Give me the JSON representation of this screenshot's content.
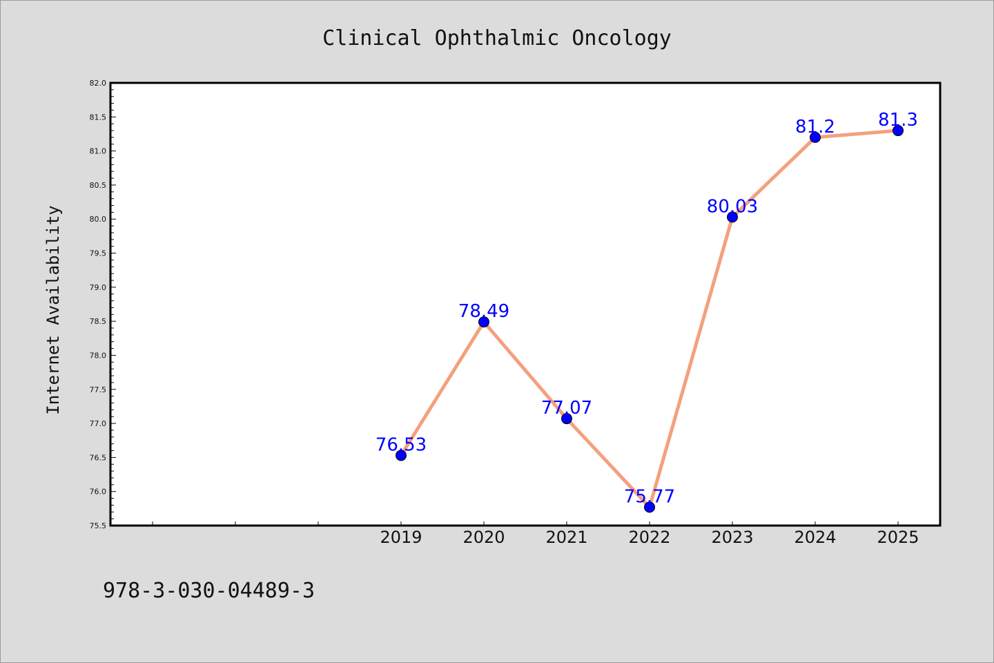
{
  "chart_data": {
    "type": "line",
    "title": "Clinical Ophthalmic Oncology",
    "xlabel": "",
    "ylabel": "Internet Availability",
    "x": [
      "2019",
      "2020",
      "2021",
      "2022",
      "2023",
      "2024",
      "2025"
    ],
    "series": [
      {
        "values": [
          76.53,
          78.49,
          77.07,
          75.77,
          80.03,
          81.2,
          81.3
        ],
        "labels": [
          "76.53",
          "78.49",
          "77.07",
          "75.77",
          "80.03",
          "81.2",
          "81.3"
        ]
      }
    ],
    "ylim": [
      75.5,
      82.0
    ],
    "yticks": [
      "75.5",
      "76.0",
      "76.5",
      "77.0",
      "77.5",
      "78.0",
      "78.5",
      "79.0",
      "79.5",
      "80.0",
      "80.5",
      "81.0",
      "81.5",
      "82.0"
    ],
    "grid": false,
    "colors": {
      "line": "#f4a07e",
      "marker": "#0000ff",
      "data_label": "#0000ff",
      "background": "#dcdcdc",
      "plot_background": "#ffffff"
    }
  },
  "footer": {
    "id_text": "978-3-030-04489-3"
  }
}
